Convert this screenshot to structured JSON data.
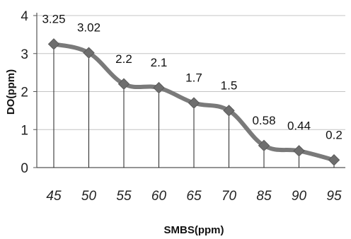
{
  "chart_data": {
    "type": "line",
    "title": "",
    "xlabel": "SMBS(ppm)",
    "ylabel": "DO(ppm)",
    "categories": [
      "45",
      "50",
      "55",
      "60",
      "65",
      "70",
      "85",
      "90",
      "95"
    ],
    "series": [
      {
        "values": [
          3.25,
          3.02,
          2.2,
          2.1,
          1.7,
          1.5,
          0.58,
          0.44,
          0.2
        ],
        "data_labels": [
          "3.25",
          "3.02",
          "2.2",
          "2.1",
          "1.7",
          "1.5",
          "0.58",
          "0.44",
          "0.2"
        ],
        "color": "#7a7a7a",
        "marker": "diamond"
      }
    ],
    "ylim": [
      0,
      4
    ],
    "yticks": [
      "0",
      "1",
      "2",
      "3",
      "4"
    ],
    "grid": "horizontal",
    "drop_lines": true,
    "legend": "none"
  }
}
